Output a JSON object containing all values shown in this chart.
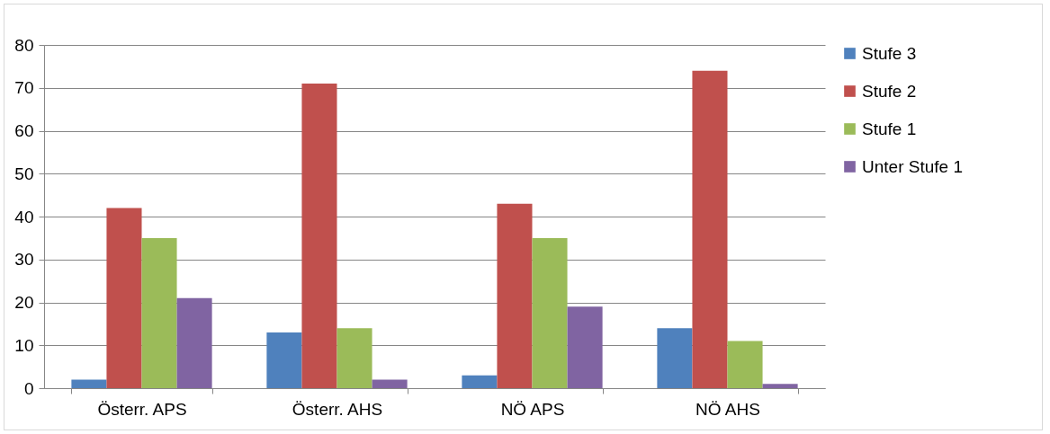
{
  "chart_data": {
    "type": "bar",
    "categories": [
      "Österr. APS",
      "Österr. AHS",
      "NÖ APS",
      "NÖ AHS"
    ],
    "series": [
      {
        "name": "Stufe 3",
        "color": "#4f81bd",
        "values": [
          2,
          13,
          3,
          14
        ]
      },
      {
        "name": "Stufe 2",
        "color": "#c0504d",
        "values": [
          42,
          71,
          43,
          74
        ]
      },
      {
        "name": "Stufe 1",
        "color": "#9bbb59",
        "values": [
          35,
          14,
          35,
          11
        ]
      },
      {
        "name": "Unter Stufe 1",
        "color": "#8064a2",
        "values": [
          21,
          2,
          19,
          1
        ]
      }
    ],
    "ylim": [
      0,
      80
    ],
    "yticks": [
      0,
      10,
      20,
      30,
      40,
      50,
      60,
      70,
      80
    ],
    "grid": "y",
    "legend": "right"
  }
}
